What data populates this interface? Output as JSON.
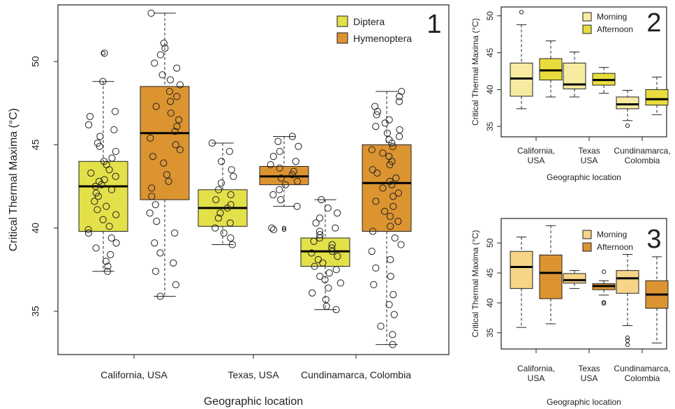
{
  "chart_data": [
    {
      "type": "boxplot",
      "panel_label": "1",
      "xlabel": "Geographic location",
      "ylabel": "Critical Thermal Maxima (°C)",
      "ylim": [
        32.4,
        53.4
      ],
      "yticks": [
        35,
        40,
        45,
        50
      ],
      "categories": [
        "California, USA",
        "Texas, USA",
        "Cundinamarca, Colombia"
      ],
      "legend_position": "top-right",
      "series": [
        {
          "name": "Diptera",
          "color": "#e3e04a",
          "boxes": [
            {
              "min": 37.4,
              "q1": 39.8,
              "median": 42.5,
              "q3": 44.0,
              "max": 48.8,
              "outliers": [
                50.5
              ]
            },
            {
              "min": 39.0,
              "q1": 40.1,
              "median": 41.2,
              "q3": 42.3,
              "max": 45.1,
              "outliers": []
            },
            {
              "min": 35.1,
              "q1": 37.7,
              "median": 38.6,
              "q3": 39.4,
              "max": 41.7,
              "outliers": []
            }
          ]
        },
        {
          "name": "Hymenoptera",
          "color": "#dc9431",
          "boxes": [
            {
              "min": 35.9,
              "q1": 41.7,
              "median": 45.7,
              "q3": 48.5,
              "max": 52.9,
              "outliers": []
            },
            {
              "min": 41.3,
              "q1": 42.6,
              "median": 43.1,
              "q3": 43.7,
              "max": 45.5,
              "outliers": [
                40.0,
                39.9
              ]
            },
            {
              "min": 33.0,
              "q1": 39.8,
              "median": 42.7,
              "q3": 45.0,
              "max": 48.2,
              "outliers": []
            }
          ]
        }
      ],
      "points": [
        [
          [
            50.5,
            48.8,
            47.0,
            46.7,
            46.2,
            45.9,
            45.5,
            45.1,
            44.9,
            44.6,
            44.2,
            44.0,
            43.8,
            43.5,
            43.3,
            43.1,
            42.9,
            42.8,
            42.6,
            42.5,
            42.3,
            42.1,
            41.9,
            41.6,
            41.3,
            41.1,
            40.8,
            40.5,
            40.1,
            39.9,
            39.7,
            39.4,
            39.1,
            38.8,
            38.4,
            38.0,
            37.7,
            37.4
          ],
          [
            52.9,
            51.1,
            50.8,
            50.4,
            49.9,
            49.6,
            49.2,
            48.9,
            48.6,
            48.2,
            47.9,
            47.6,
            47.3,
            46.9,
            46.5,
            46.1,
            45.8,
            45.4,
            45.0,
            44.7,
            44.3,
            43.9,
            43.2,
            42.8,
            42.4,
            41.9,
            41.4,
            40.9,
            40.4,
            39.7,
            39.1,
            38.5,
            37.9,
            37.4,
            36.6,
            35.9
          ],
          [
            45.1,
            44.6,
            44.0,
            43.5,
            43.1,
            42.7,
            42.3,
            42.0,
            41.7,
            41.4,
            41.2,
            40.9,
            40.6,
            40.3,
            40.0,
            39.7,
            39.4,
            39.0
          ],
          [
            45.5,
            45.2,
            44.9,
            44.6,
            44.3,
            44.0,
            43.8,
            43.6,
            43.4,
            43.2,
            43.0,
            42.8,
            42.6,
            42.3,
            42.0,
            41.7,
            41.3,
            40.0,
            39.9
          ],
          [
            41.7,
            41.2,
            40.9,
            40.6,
            40.3,
            40.0,
            39.8,
            39.6,
            39.4,
            39.2,
            39.0,
            38.8,
            38.6,
            38.5,
            38.3,
            38.1,
            37.9,
            37.7,
            37.5,
            37.3,
            37.1,
            36.9,
            36.7,
            36.4,
            36.1,
            35.7,
            35.3,
            35.1
          ],
          [
            48.2,
            47.9,
            47.6,
            47.3,
            47.0,
            46.8,
            46.5,
            46.3,
            46.1,
            45.9,
            45.7,
            45.5,
            45.3,
            45.1,
            44.9,
            44.7,
            44.5,
            44.3,
            44.0,
            43.8,
            43.5,
            43.3,
            43.0,
            42.8,
            42.6,
            42.4,
            42.1,
            41.9,
            41.6,
            41.3,
            41.0,
            40.7,
            40.4,
            40.1,
            39.8,
            39.4,
            39.0,
            38.6,
            38.1,
            37.6,
            37.1,
            36.6,
            36.0,
            35.4,
            34.8,
            34.1,
            33.6,
            33.0
          ]
        ]
      ]
    },
    {
      "type": "boxplot",
      "panel_label": "2",
      "xlabel": "Geographic location",
      "ylabel": "Critical Thermal Maxima (°C)",
      "ylim": [
        33.6,
        51.2
      ],
      "yticks": [
        35,
        40,
        45,
        50
      ],
      "categories": [
        "California,\nUSA",
        "Texas\nUSA",
        "Cundinamarca,\nColombia"
      ],
      "legend_position": "top-right",
      "series": [
        {
          "name": "Morning",
          "color": "#f6eba0",
          "boxes": [
            {
              "min": 37.4,
              "q1": 39.1,
              "median": 41.5,
              "q3": 43.6,
              "max": 48.8,
              "outliers": [
                50.5
              ]
            },
            {
              "min": 39.0,
              "q1": 40.1,
              "median": 40.7,
              "q3": 43.6,
              "max": 45.1,
              "outliers": []
            },
            {
              "min": 35.8,
              "q1": 37.4,
              "median": 38.0,
              "q3": 39.0,
              "max": 39.9,
              "outliers": [
                35.1
              ]
            }
          ]
        },
        {
          "name": "Afternoon",
          "color": "#e8dd3c",
          "boxes": [
            {
              "min": 39.0,
              "q1": 41.3,
              "median": 42.6,
              "q3": 44.2,
              "max": 46.6,
              "outliers": []
            },
            {
              "min": 39.5,
              "q1": 40.6,
              "median": 41.3,
              "q3": 42.2,
              "max": 43.0,
              "outliers": []
            },
            {
              "min": 36.6,
              "q1": 37.9,
              "median": 38.7,
              "q3": 40.0,
              "max": 41.7,
              "outliers": []
            }
          ]
        }
      ]
    },
    {
      "type": "boxplot",
      "panel_label": "3",
      "xlabel": "Geographic location",
      "ylabel": "Critical Thermal Maxima (°C)",
      "ylim": [
        32.3,
        54.1
      ],
      "yticks": [
        35,
        40,
        45,
        50
      ],
      "categories": [
        "California,\nUSA",
        "Texas\nUSA",
        "Cundinamarca,\nColombia"
      ],
      "legend_position": "top-right",
      "series": [
        {
          "name": "Morning",
          "color": "#f6d488",
          "boxes": [
            {
              "min": 35.9,
              "q1": 42.4,
              "median": 46.0,
              "q3": 48.6,
              "max": 51.0,
              "outliers": []
            },
            {
              "min": 42.4,
              "q1": 43.3,
              "median": 43.8,
              "q3": 44.9,
              "max": 45.4,
              "outliers": []
            },
            {
              "min": 36.2,
              "q1": 41.6,
              "median": 44.1,
              "q3": 45.4,
              "max": 48.1,
              "outliers": [
                34.2,
                33.7,
                33.0
              ]
            }
          ]
        },
        {
          "name": "Afternoon",
          "color": "#dc9431",
          "boxes": [
            {
              "min": 36.5,
              "q1": 40.7,
              "median": 45.0,
              "q3": 48.0,
              "max": 52.9,
              "outliers": []
            },
            {
              "min": 41.3,
              "q1": 42.2,
              "median": 42.8,
              "q3": 43.2,
              "max": 43.7,
              "outliers": [
                45.2,
                40.1,
                39.9
              ]
            },
            {
              "min": 33.3,
              "q1": 39.1,
              "median": 41.4,
              "q3": 43.7,
              "max": 47.7,
              "outliers": []
            }
          ]
        }
      ]
    }
  ]
}
